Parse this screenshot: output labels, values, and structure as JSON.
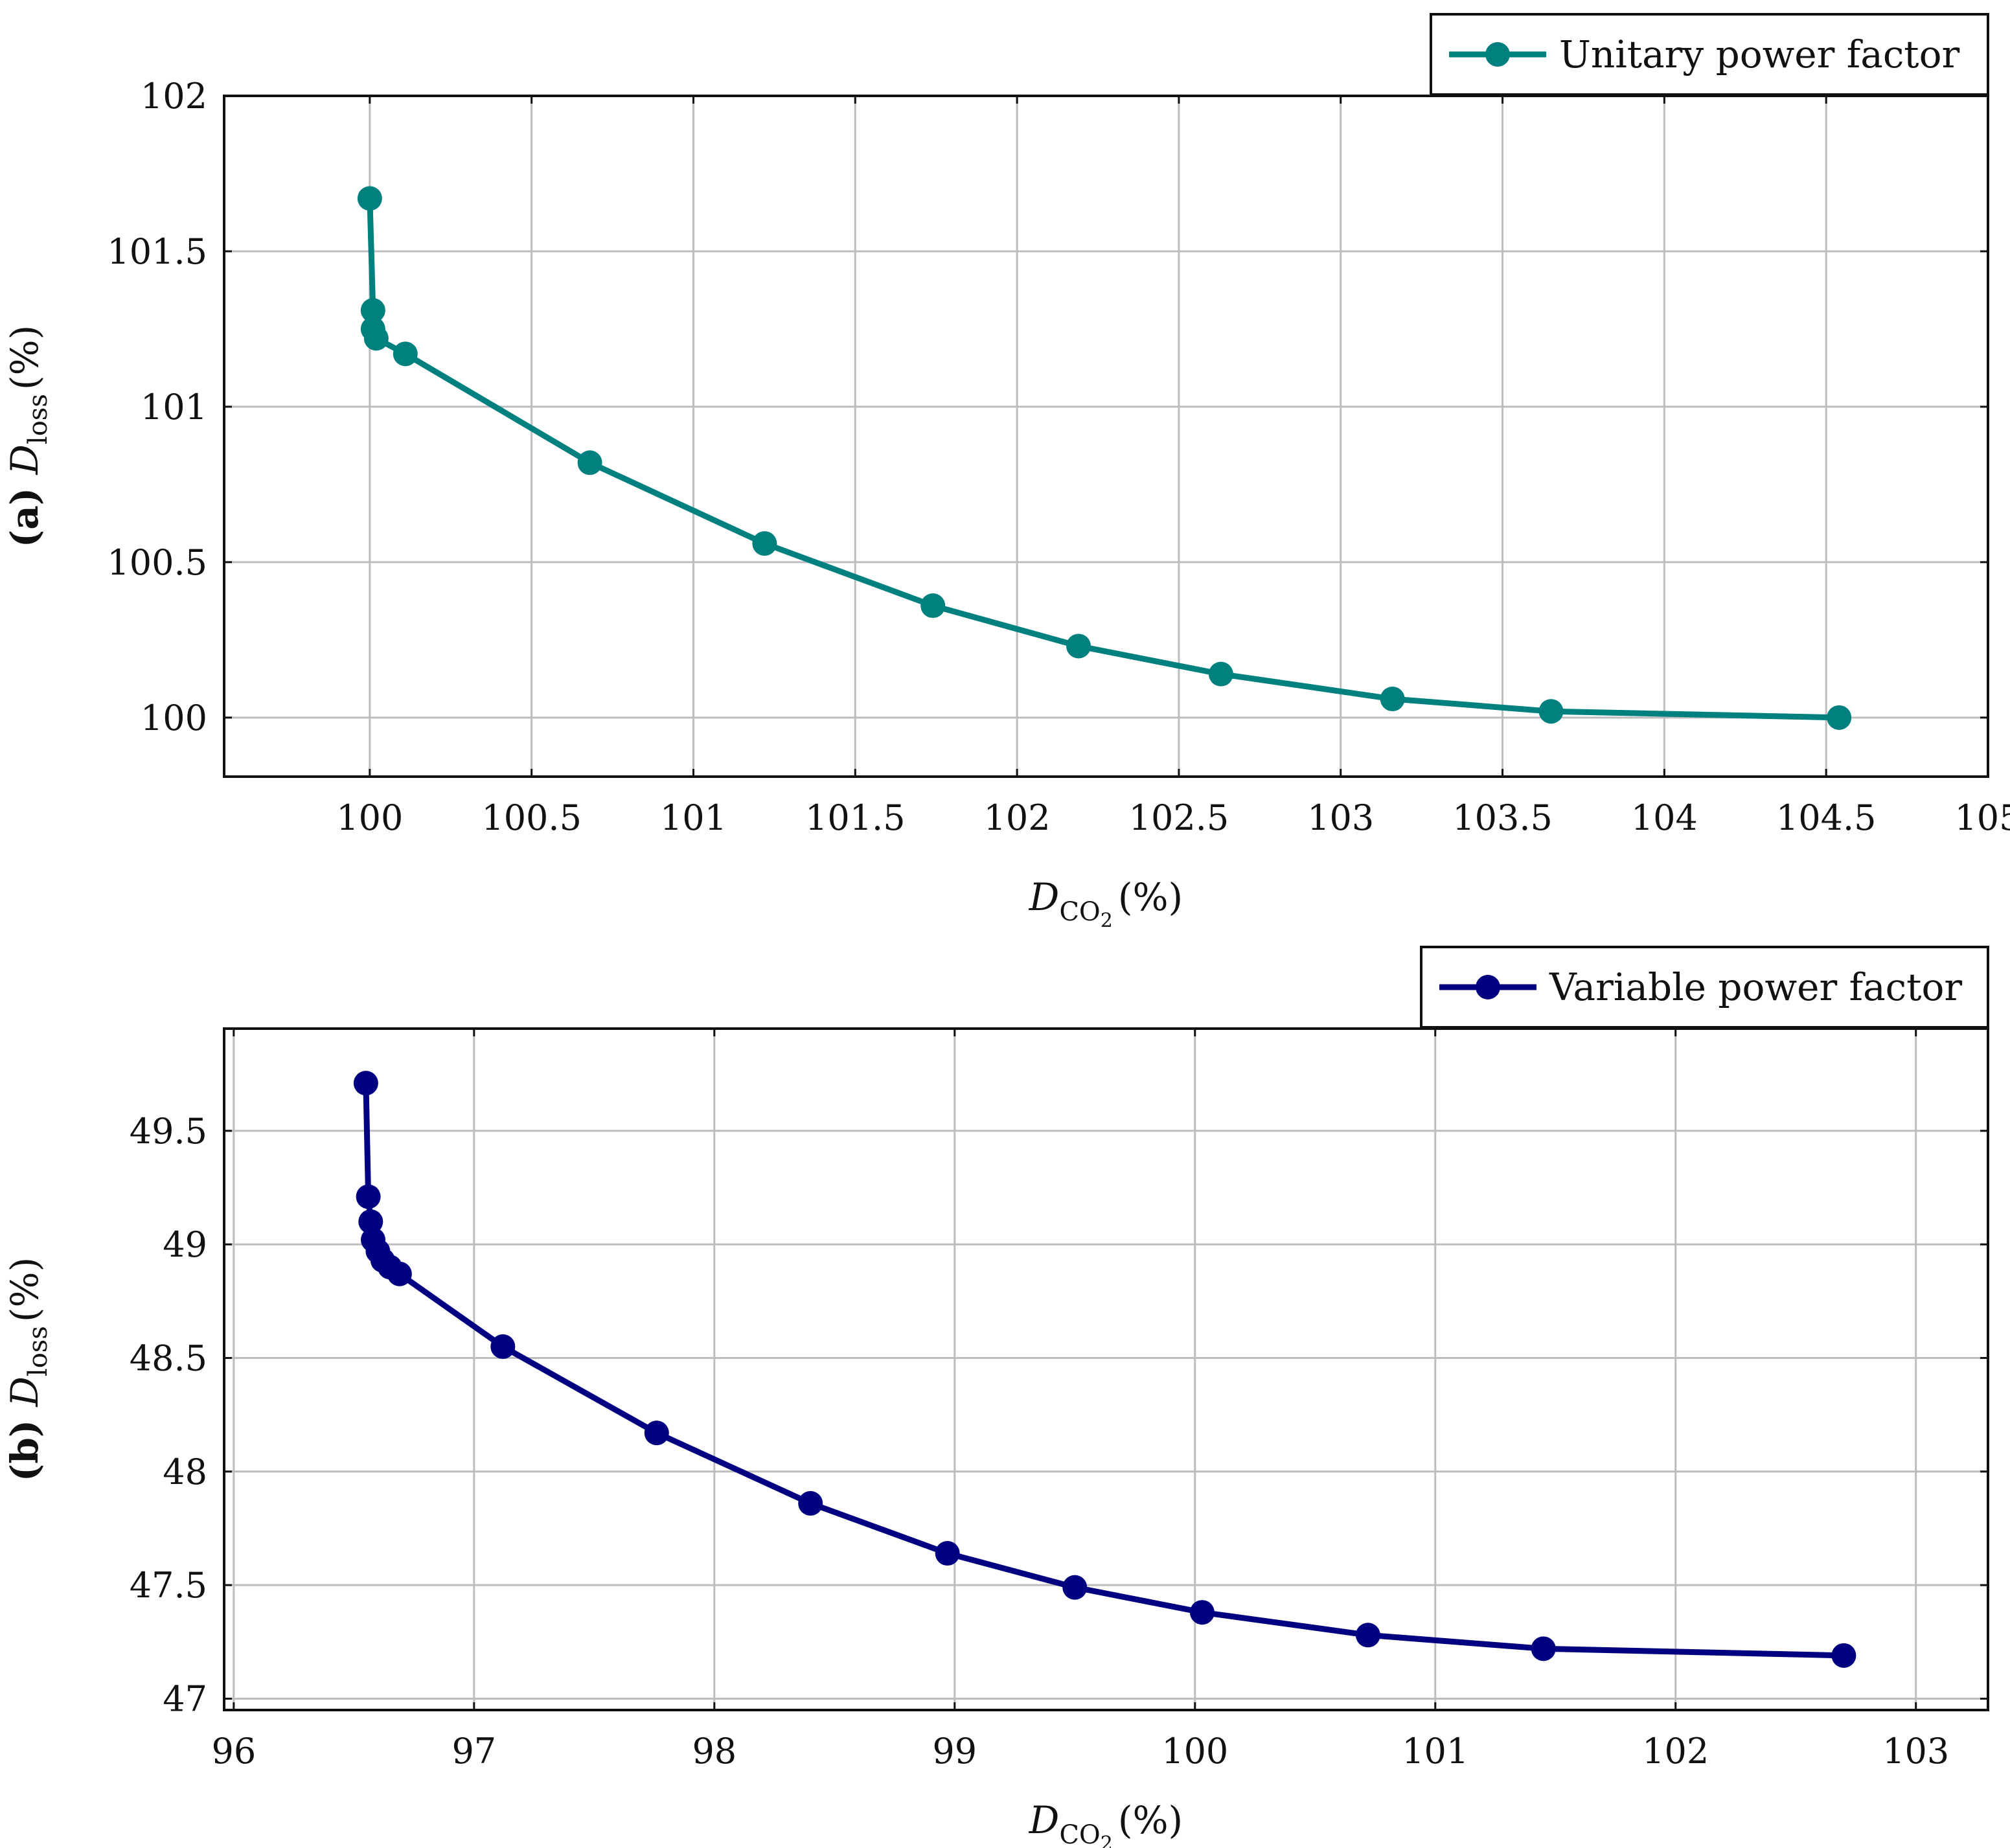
{
  "chart_data": [
    {
      "type": "line",
      "panel_label": "(a)",
      "title": "",
      "xlabel": {
        "symbol": "D",
        "sub": "CO",
        "subsub": "2",
        "unit": "(%)"
      },
      "ylabel": {
        "symbol": "D",
        "sub": "loss",
        "unit": "(%)"
      },
      "xlim": [
        99.55,
        105
      ],
      "ylim": [
        99.81,
        102
      ],
      "xticks": [
        100,
        100.5,
        101,
        101.5,
        102,
        102.5,
        103,
        103.5,
        104,
        104.5,
        105
      ],
      "xtick_labels": [
        "100",
        "100.5",
        "101",
        "101.5",
        "102",
        "102.5",
        "103",
        "103.5",
        "104",
        "104.5",
        "105"
      ],
      "yticks": [
        100,
        100.5,
        101,
        101.5,
        102
      ],
      "ytick_labels": [
        "100",
        "100.5",
        "101",
        "101.5",
        "102"
      ],
      "grid": true,
      "legend_position": "top-right",
      "series": [
        {
          "name": "Unitary power factor",
          "color": "#00807f",
          "x": [
            100.0,
            100.01,
            100.01,
            100.02,
            100.11,
            100.68,
            101.22,
            101.74,
            102.19,
            102.63,
            103.16,
            103.65,
            104.54
          ],
          "y": [
            101.67,
            101.31,
            101.25,
            101.22,
            101.17,
            100.82,
            100.56,
            100.36,
            100.23,
            100.14,
            100.06,
            100.02,
            100.0
          ]
        }
      ]
    },
    {
      "type": "line",
      "panel_label": "(b)",
      "title": "",
      "xlabel": {
        "symbol": "D",
        "sub": "CO",
        "subsub": "2",
        "unit": "(%)"
      },
      "ylabel": {
        "symbol": "D",
        "sub": "loss",
        "unit": "(%)"
      },
      "xlim": [
        95.96,
        103.3
      ],
      "ylim": [
        46.95,
        49.95
      ],
      "xticks": [
        96,
        97,
        98,
        99,
        100,
        101,
        102,
        103
      ],
      "xtick_labels": [
        "96",
        "97",
        "98",
        "99",
        "100",
        "101",
        "102",
        "103"
      ],
      "yticks": [
        47,
        47.5,
        48,
        48.5,
        49,
        49.5
      ],
      "ytick_labels": [
        "47",
        "47.5",
        "48",
        "48.5",
        "49",
        "49.5"
      ],
      "grid": true,
      "legend_position": "top-right",
      "series": [
        {
          "name": "Variable power factor",
          "color": "#000080",
          "x": [
            96.55,
            96.56,
            96.57,
            96.58,
            96.6,
            96.62,
            96.65,
            96.69,
            97.12,
            97.76,
            98.4,
            98.97,
            99.5,
            100.03,
            100.72,
            101.45,
            102.7
          ],
          "y": [
            49.71,
            49.21,
            49.1,
            49.02,
            48.97,
            48.93,
            48.9,
            48.87,
            48.55,
            48.17,
            47.86,
            47.64,
            47.49,
            47.38,
            47.28,
            47.22,
            47.19
          ]
        }
      ]
    }
  ]
}
